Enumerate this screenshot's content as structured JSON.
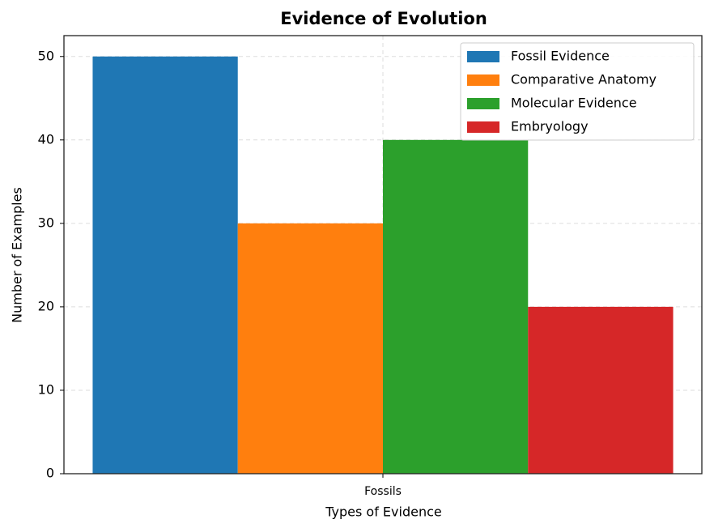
{
  "chart_data": {
    "type": "bar",
    "title": "Evidence of Evolution",
    "x_label": "Types of Evidence",
    "y_label": "Number of Examples",
    "categories": [
      "Fossils"
    ],
    "series": [
      {
        "name": "Fossil Evidence",
        "color": "#1f77b4",
        "values": [
          50
        ]
      },
      {
        "name": "Comparative Anatomy",
        "color": "#ff7f0e",
        "values": [
          30
        ]
      },
      {
        "name": "Molecular Evidence",
        "color": "#2ca02c",
        "values": [
          40
        ]
      },
      {
        "name": "Embryology",
        "color": "#d62728",
        "values": [
          20
        ]
      }
    ],
    "ylim": [
      0,
      52.5
    ],
    "yticks": [
      0,
      10,
      20,
      30,
      40,
      50
    ],
    "grid": true,
    "legend": "upper right"
  }
}
